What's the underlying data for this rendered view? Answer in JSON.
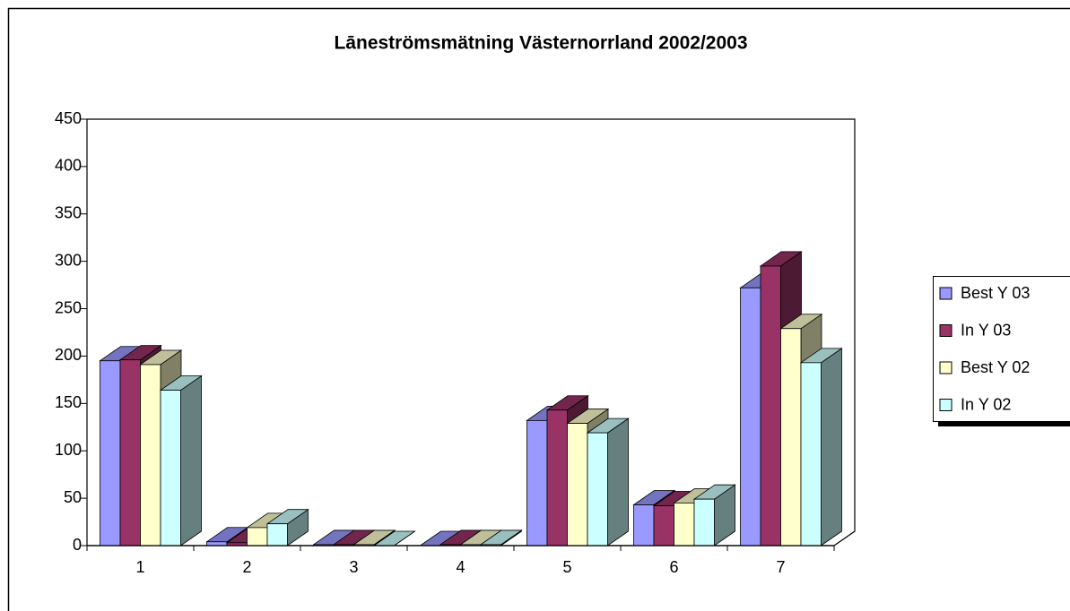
{
  "chart_data": {
    "type": "bar3d",
    "title": "Lāneströmsmätning Västernorrland 2002/2003",
    "categories": [
      "1",
      "2",
      "3",
      "4",
      "5",
      "6",
      "7"
    ],
    "series": [
      {
        "name": "Best Y 03",
        "color": "#9999ff",
        "values": [
          195,
          4,
          1,
          0,
          132,
          43,
          272
        ]
      },
      {
        "name": "In Y 03",
        "color": "#993366",
        "values": [
          196,
          3,
          1,
          1,
          143,
          42,
          295
        ]
      },
      {
        "name": "Best Y 02",
        "color": "#ffffcc",
        "values": [
          191,
          19,
          1,
          1,
          129,
          45,
          229
        ]
      },
      {
        "name": "In Y 02",
        "color": "#ccffff",
        "values": [
          164,
          23,
          0,
          1,
          119,
          49,
          193
        ]
      }
    ],
    "ylim": [
      0,
      450
    ],
    "yticks": [
      0,
      50,
      100,
      150,
      200,
      250,
      300,
      350,
      400,
      450
    ],
    "legend": "right"
  }
}
